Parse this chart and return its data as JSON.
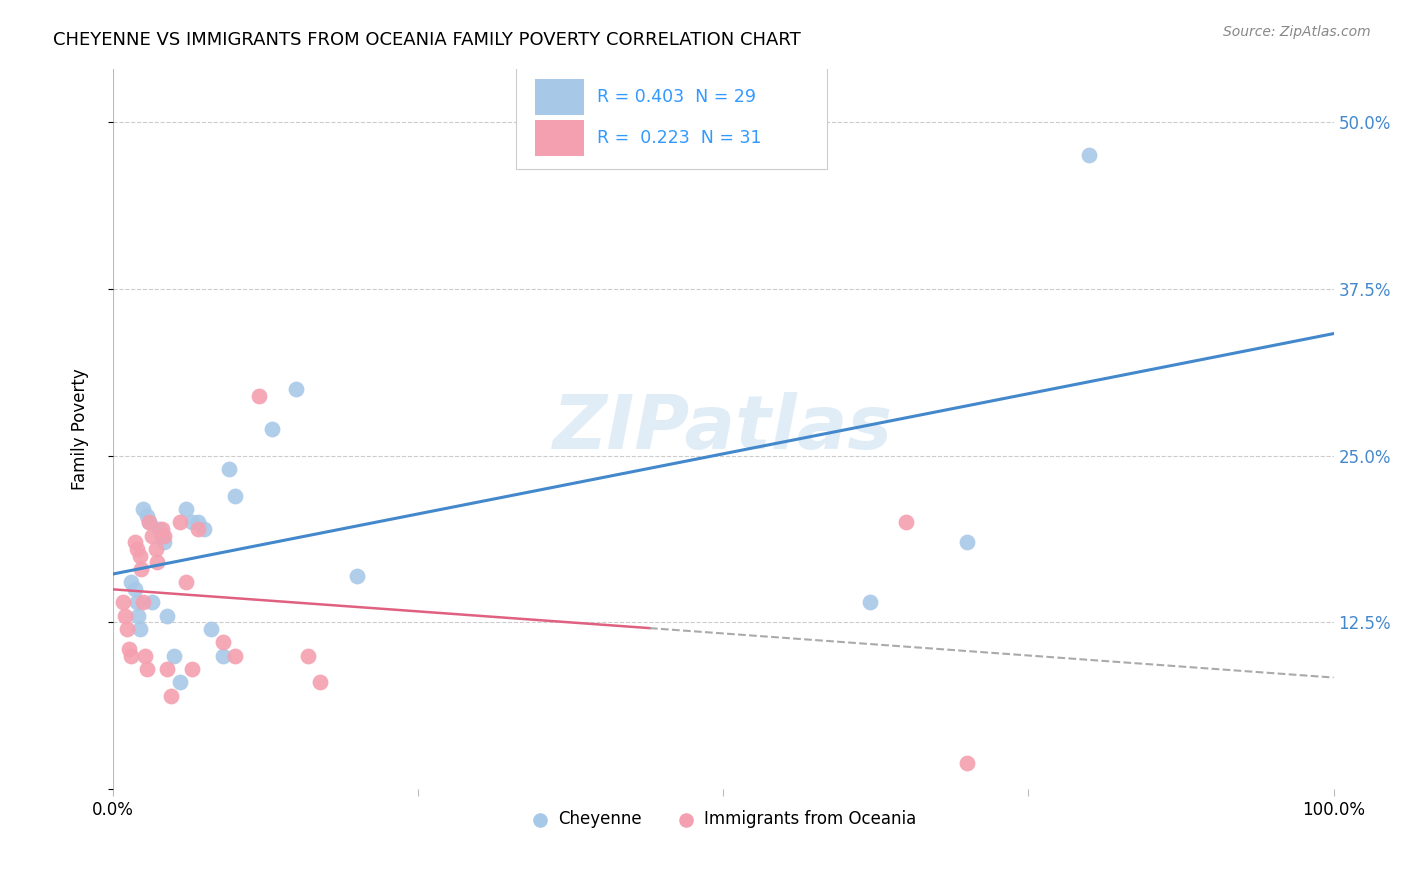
{
  "title": "CHEYENNE VS IMMIGRANTS FROM OCEANIA FAMILY POVERTY CORRELATION CHART",
  "source": "Source: ZipAtlas.com",
  "ylabel": "Family Poverty",
  "legend1_r": "0.403",
  "legend1_n": "29",
  "legend2_r": "0.223",
  "legend2_n": "31",
  "legend1_label": "Cheyenne",
  "legend2_label": "Immigrants from Oceania",
  "color_blue": "#a8c8e8",
  "color_pink": "#f4a0b0",
  "color_blue_line": "#4488cc",
  "color_pink_line": "#e06080",
  "color_rtext": "#3399ff",
  "watermark": "ZIPatlas",
  "blue_x": [
    0.015,
    0.018,
    0.02,
    0.021,
    0.022,
    0.025,
    0.028,
    0.03,
    0.032,
    0.038,
    0.04,
    0.042,
    0.044,
    0.05,
    0.055,
    0.06,
    0.065,
    0.07,
    0.075,
    0.08,
    0.09,
    0.095,
    0.1,
    0.13,
    0.15,
    0.2,
    0.62,
    0.7,
    0.8
  ],
  "blue_y": [
    0.155,
    0.15,
    0.14,
    0.13,
    0.12,
    0.21,
    0.205,
    0.2,
    0.14,
    0.195,
    0.19,
    0.185,
    0.13,
    0.1,
    0.08,
    0.21,
    0.2,
    0.2,
    0.195,
    0.12,
    0.1,
    0.24,
    0.22,
    0.27,
    0.3,
    0.16,
    0.14,
    0.185,
    0.475
  ],
  "pink_x": [
    0.008,
    0.01,
    0.012,
    0.013,
    0.015,
    0.018,
    0.02,
    0.022,
    0.023,
    0.025,
    0.026,
    0.028,
    0.03,
    0.032,
    0.035,
    0.036,
    0.04,
    0.042,
    0.044,
    0.048,
    0.055,
    0.06,
    0.065,
    0.07,
    0.09,
    0.1,
    0.12,
    0.16,
    0.17,
    0.65,
    0.7
  ],
  "pink_y": [
    0.14,
    0.13,
    0.12,
    0.105,
    0.1,
    0.185,
    0.18,
    0.175,
    0.165,
    0.14,
    0.1,
    0.09,
    0.2,
    0.19,
    0.18,
    0.17,
    0.195,
    0.19,
    0.09,
    0.07,
    0.2,
    0.155,
    0.09,
    0.195,
    0.11,
    0.1,
    0.295,
    0.1,
    0.08,
    0.2,
    0.02
  ]
}
